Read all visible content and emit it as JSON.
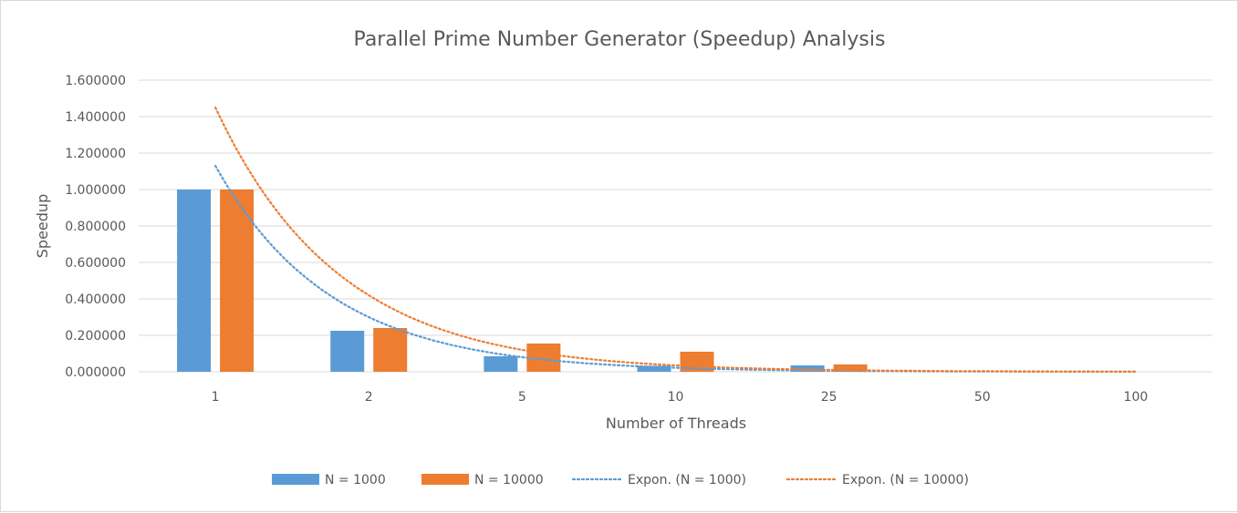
{
  "chart_data": {
    "type": "bar",
    "title": "Parallel Prime Number Generator (Speedup) Analysis",
    "xlabel": "Number of Threads",
    "ylabel": "Speedup",
    "categories": [
      "1",
      "2",
      "5",
      "10",
      "25",
      "50",
      "100"
    ],
    "ylim": [
      0,
      1.6
    ],
    "yticks": [
      "0.000000",
      "0.200000",
      "0.400000",
      "0.600000",
      "0.800000",
      "1.000000",
      "1.200000",
      "1.400000",
      "1.600000"
    ],
    "grid": true,
    "legend_position": "bottom",
    "series": [
      {
        "name": "N = 1000",
        "color": "#5b9bd5",
        "values": [
          1.0,
          0.225,
          0.085,
          0.033,
          0.035,
          0,
          0
        ]
      },
      {
        "name": "N = 10000",
        "color": "#ed7d31",
        "values": [
          1.0,
          0.24,
          0.155,
          0.11,
          0.04,
          0,
          0
        ]
      }
    ],
    "trendlines": [
      {
        "name": "Expon.  (N = 1000)",
        "color": "#5b9bd5",
        "type": "exponential",
        "values": [
          1.13,
          0.3,
          0.08,
          0.022,
          0.006,
          0.0016,
          0.0004
        ]
      },
      {
        "name": "Expon.  (N = 10000)",
        "color": "#ed7d31",
        "type": "exponential",
        "values": [
          1.45,
          0.42,
          0.12,
          0.035,
          0.01,
          0.003,
          0.0009
        ]
      }
    ]
  }
}
